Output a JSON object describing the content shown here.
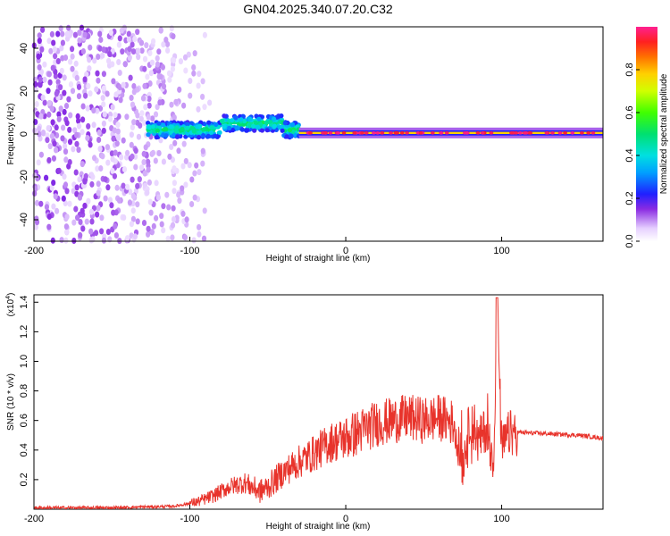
{
  "figure_title": "GN04.2025.340.07.20.C32",
  "chart_data": [
    {
      "type": "heatmap",
      "xlabel": "Height of straight line (km)",
      "ylabel": "Frequency (Hz)",
      "xlim": [
        -200,
        165
      ],
      "ylim": [
        -50,
        50
      ],
      "x_ticks": [
        "-200",
        "-100",
        "0",
        "100"
      ],
      "y_ticks": [
        "40",
        "20",
        "0",
        "-20",
        "-40"
      ],
      "colorbar": {
        "label": "Normalized spectral amplitude",
        "range": [
          0,
          1
        ],
        "ticks": [
          "0.0",
          "0.2",
          "0.4",
          "0.6",
          "0.8"
        ]
      },
      "regions": [
        {
          "x_range": [
            -200,
            -87
          ],
          "freq_range": [
            -50,
            50
          ],
          "amplitude": "0.0-0.2",
          "pattern": "diffuse"
        },
        {
          "x_range": [
            -127,
            -30
          ],
          "freq_center": 2,
          "freq_width": 7,
          "amplitude": "0.2-0.5",
          "pattern": "band"
        },
        {
          "x_range": [
            -30,
            165
          ],
          "freq_center": 0.5,
          "freq_width": 2,
          "amplitude": "0.7-1.0",
          "pattern": "narrow line"
        }
      ]
    },
    {
      "type": "line",
      "xlabel": "Height of straight line (km)",
      "ylabel": "SNR (10 * v/v)",
      "y_multiplier": "(x10",
      "y_multiplier_exp": "4",
      "y_multiplier_close": ")",
      "xlim": [
        -200,
        165
      ],
      "ylim": [
        0,
        1.45
      ],
      "x_ticks": [
        "-200",
        "-100",
        "0",
        "100"
      ],
      "y_ticks": [
        "0.2",
        "0.4",
        "0.6",
        "0.8",
        "1.0",
        "1.2",
        "1.4"
      ],
      "series": [
        {
          "color": "#e8332b",
          "x": [
            -200,
            -150,
            -110,
            -95,
            -85,
            -75,
            -65,
            -55,
            -50,
            -40,
            -30,
            -20,
            -10,
            0,
            10,
            20,
            30,
            40,
            50,
            60,
            70,
            75,
            80,
            85,
            90,
            95,
            97,
            100,
            105,
            108,
            110,
            130,
            150,
            165
          ],
          "y": [
            0.01,
            0.01,
            0.02,
            0.05,
            0.09,
            0.15,
            0.18,
            0.12,
            0.15,
            0.25,
            0.32,
            0.38,
            0.45,
            0.48,
            0.53,
            0.58,
            0.6,
            0.62,
            0.6,
            0.62,
            0.58,
            0.3,
            0.62,
            0.45,
            0.55,
            0.35,
            1.43,
            0.4,
            0.52,
            0.5,
            0.52,
            0.51,
            0.5,
            0.48
          ]
        }
      ]
    }
  ]
}
